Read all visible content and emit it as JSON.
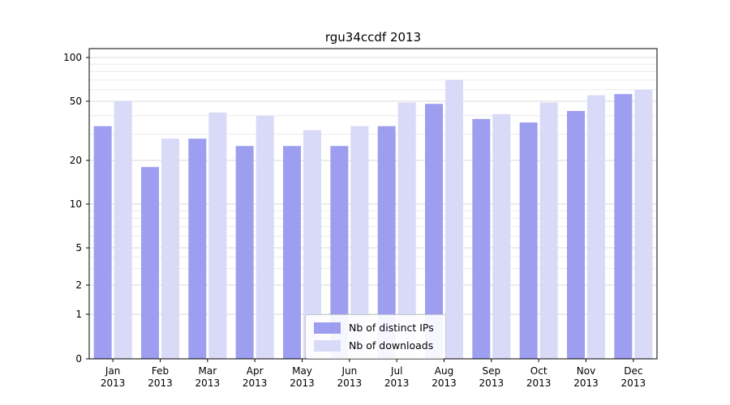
{
  "chart_data": {
    "type": "bar",
    "title": "rgu34ccdf 2013",
    "categories": [
      "Jan",
      "Feb",
      "Mar",
      "Apr",
      "May",
      "Jun",
      "Jul",
      "Aug",
      "Sep",
      "Oct",
      "Nov",
      "Dec"
    ],
    "category_year": "2013",
    "series": [
      {
        "name": "Nb of distinct IPs",
        "color": "#9e9ef0",
        "values": [
          34,
          18,
          28,
          25,
          25,
          25,
          34,
          48,
          38,
          36,
          43,
          56
        ]
      },
      {
        "name": "Nb of downloads",
        "color": "#d9d9f8",
        "values": [
          50,
          28,
          42,
          40,
          32,
          34,
          49,
          70,
          41,
          49,
          55,
          60
        ]
      }
    ],
    "yticks": [
      0,
      1,
      2,
      5,
      10,
      20,
      50,
      100
    ],
    "ylim": [
      0,
      100
    ],
    "yscale": "symlog",
    "grid": true,
    "legend_position": "lower center",
    "colors": {
      "grid_major": "#d9d9d9",
      "grid_minor": "#ebebeb",
      "axis": "#000000",
      "background": "#ffffff"
    }
  }
}
